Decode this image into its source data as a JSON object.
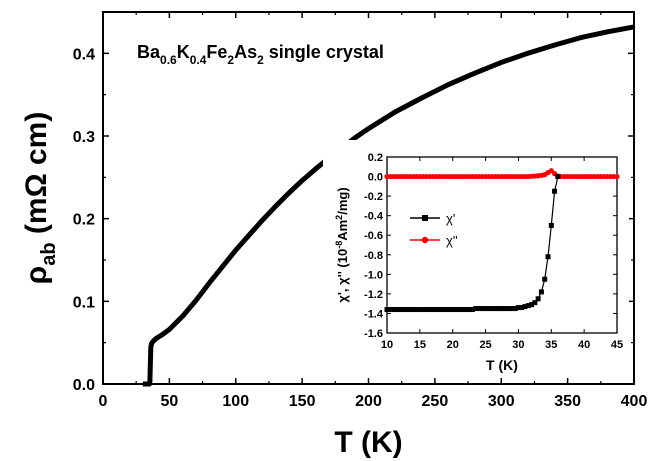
{
  "chart_data": [
    {
      "type": "line",
      "annotation": {
        "parts": [
          {
            "text": "Ba",
            "sub": false
          },
          {
            "text": "0.6",
            "sub": true
          },
          {
            "text": "K",
            "sub": false
          },
          {
            "text": "0.4",
            "sub": true
          },
          {
            "text": "Fe",
            "sub": false
          },
          {
            "text": "2",
            "sub": true
          },
          {
            "text": "As",
            "sub": false
          },
          {
            "text": "2",
            "sub": true
          },
          {
            "text": " single crystal",
            "sub": false
          }
        ]
      },
      "xlabel": "T (K)",
      "ylabel": {
        "main": "ρ",
        "sub": "ab",
        "unit": " (mΩ cm)"
      },
      "xlim": [
        0,
        400
      ],
      "ylim": [
        0,
        0.45
      ],
      "xticks": [
        0,
        50,
        100,
        150,
        200,
        250,
        300,
        350,
        400
      ],
      "yticks": [
        0.0,
        0.1,
        0.2,
        0.3,
        0.4
      ],
      "ytick_labels": [
        "0.0",
        "0.1",
        "0.2",
        "0.3",
        "0.4"
      ],
      "grid": false,
      "series": [
        {
          "color": "#000000",
          "x": [
            30,
            35,
            35.3,
            35.6,
            36,
            36.5,
            37,
            38,
            40,
            45,
            50,
            60,
            70,
            80,
            90,
            100,
            110,
            120,
            130,
            140,
            150,
            160,
            170,
            180,
            190,
            200,
            220,
            240,
            260,
            280,
            300,
            320,
            340,
            360,
            380,
            400
          ],
          "y": [
            0,
            0,
            0.003,
            0.022,
            0.044,
            0.049,
            0.05,
            0.052,
            0.055,
            0.06,
            0.066,
            0.082,
            0.101,
            0.122,
            0.142,
            0.162,
            0.18,
            0.198,
            0.215,
            0.231,
            0.246,
            0.26,
            0.273,
            0.286,
            0.298,
            0.309,
            0.329,
            0.346,
            0.362,
            0.376,
            0.389,
            0.4,
            0.41,
            0.419,
            0.426,
            0.432
          ]
        }
      ]
    },
    {
      "type": "line",
      "xlabel": "T (K)",
      "ylabel": {
        "base": "χ', χ'' (10",
        "sup1": "-8",
        "mid": "Am",
        "sup2": "2",
        "end": "/mg)"
      },
      "xlim": [
        10,
        45
      ],
      "ylim": [
        -1.6,
        0.2
      ],
      "xticks": [
        10,
        15,
        20,
        25,
        30,
        35,
        40,
        45
      ],
      "yticks": [
        0.2,
        0.0,
        -0.2,
        -0.4,
        -0.6,
        -0.8,
        -1.0,
        -1.2,
        -1.4,
        -1.6
      ],
      "ytick_labels": [
        "0.2",
        "0.0",
        "-0.2",
        "-0.4",
        "-0.6",
        "-0.8",
        "-1.0",
        "-1.2",
        "-1.4",
        "-1.6"
      ],
      "legend_position": "center-left",
      "grid": false,
      "series": [
        {
          "name": "χ'",
          "color": "#000000",
          "marker": "square",
          "x": [
            10,
            10.5,
            11,
            11.5,
            12,
            12.5,
            13,
            13.5,
            14,
            14.5,
            15,
            15.5,
            16,
            16.5,
            17,
            17.5,
            18,
            18.5,
            19,
            19.5,
            20,
            20.5,
            21,
            21.5,
            22,
            22.5,
            23,
            23.5,
            24,
            24.5,
            25,
            25.5,
            26,
            26.5,
            27,
            27.5,
            28,
            28.5,
            29,
            29.5,
            30,
            30.5,
            31,
            31.5,
            32,
            32.5,
            33,
            33.5,
            34,
            34.5,
            35,
            35.5,
            36
          ],
          "y": [
            -1.36,
            -1.36,
            -1.36,
            -1.36,
            -1.36,
            -1.36,
            -1.36,
            -1.36,
            -1.36,
            -1.36,
            -1.36,
            -1.36,
            -1.36,
            -1.36,
            -1.36,
            -1.36,
            -1.36,
            -1.36,
            -1.36,
            -1.36,
            -1.36,
            -1.36,
            -1.36,
            -1.36,
            -1.36,
            -1.36,
            -1.36,
            -1.35,
            -1.35,
            -1.35,
            -1.35,
            -1.35,
            -1.35,
            -1.35,
            -1.35,
            -1.35,
            -1.35,
            -1.35,
            -1.35,
            -1.35,
            -1.34,
            -1.34,
            -1.33,
            -1.32,
            -1.31,
            -1.29,
            -1.25,
            -1.18,
            -1.05,
            -0.82,
            -0.5,
            -0.15,
            0.0
          ]
        },
        {
          "name": "χ''",
          "color": "#ff0000",
          "marker": "circle",
          "x": [
            10,
            10.5,
            11,
            11.5,
            12,
            12.5,
            13,
            13.5,
            14,
            14.5,
            15,
            15.5,
            16,
            16.5,
            17,
            17.5,
            18,
            18.5,
            19,
            19.5,
            20,
            20.5,
            21,
            21.5,
            22,
            22.5,
            23,
            23.5,
            24,
            24.5,
            25,
            25.5,
            26,
            26.5,
            27,
            27.5,
            28,
            28.5,
            29,
            29.5,
            30,
            30.5,
            31,
            31.5,
            32,
            32.5,
            33,
            33.5,
            34,
            34.5,
            35,
            35.5,
            36,
            36.5,
            37,
            37.5,
            38,
            38.5,
            39,
            39.5,
            40,
            40.5,
            41,
            41.5,
            42,
            42.5,
            43,
            43.5,
            44,
            44.5,
            45
          ],
          "y": [
            0,
            0,
            0,
            0,
            0,
            0,
            0,
            0,
            0,
            0,
            0,
            0,
            0,
            0,
            0,
            0,
            0,
            0,
            0,
            0,
            0,
            0,
            0,
            0,
            0,
            0,
            0,
            0,
            0,
            0,
            0,
            0,
            0,
            0,
            0,
            0,
            0,
            0,
            0,
            0,
            0,
            0,
            0,
            0,
            0.003,
            0.005,
            0.008,
            0.012,
            0.02,
            0.04,
            0.06,
            0.03,
            0.005,
            0,
            0,
            0,
            0,
            0,
            0,
            0,
            0,
            0,
            0,
            0,
            0,
            0,
            0,
            0,
            0,
            0,
            0
          ]
        }
      ]
    }
  ]
}
